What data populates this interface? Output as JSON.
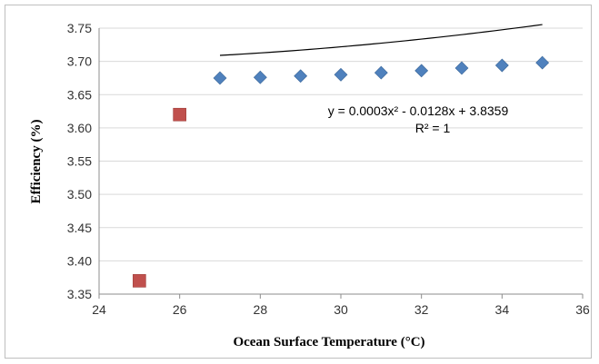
{
  "chart_data": {
    "type": "scatter",
    "title": "",
    "xlabel": "Ocean Surface Temperature  (°C)",
    "ylabel": "Efficiency (%)",
    "xlim": [
      24,
      36
    ],
    "ylim": [
      3.35,
      3.75
    ],
    "x_ticks": [
      "24",
      "26",
      "28",
      "30",
      "32",
      "34",
      "36"
    ],
    "y_ticks": [
      "3.35",
      "3.40",
      "3.45",
      "3.50",
      "3.55",
      "3.60",
      "3.65",
      "3.70",
      "3.75"
    ],
    "grid": "horizontal",
    "legend": "none",
    "series": [
      {
        "marker": "diamond",
        "color": "#4f81bd",
        "x": [
          27,
          28,
          29,
          30,
          31,
          32,
          33,
          34,
          35
        ],
        "y": [
          3.675,
          3.676,
          3.678,
          3.68,
          3.683,
          3.686,
          3.69,
          3.694,
          3.698
        ]
      },
      {
        "marker": "square",
        "color": "#c0504d",
        "x": [
          25,
          26
        ],
        "y": [
          3.37,
          3.62
        ]
      }
    ],
    "trendline": {
      "type": "polynomial",
      "coefficients": [
        0.0003,
        -0.0128,
        3.8359
      ],
      "x_range": [
        27,
        35
      ],
      "color": "#000000"
    },
    "annotations": {
      "equation": "y = 0.0003x² - 0.0128x + 3.8359",
      "r_squared": "R² = 1"
    }
  }
}
